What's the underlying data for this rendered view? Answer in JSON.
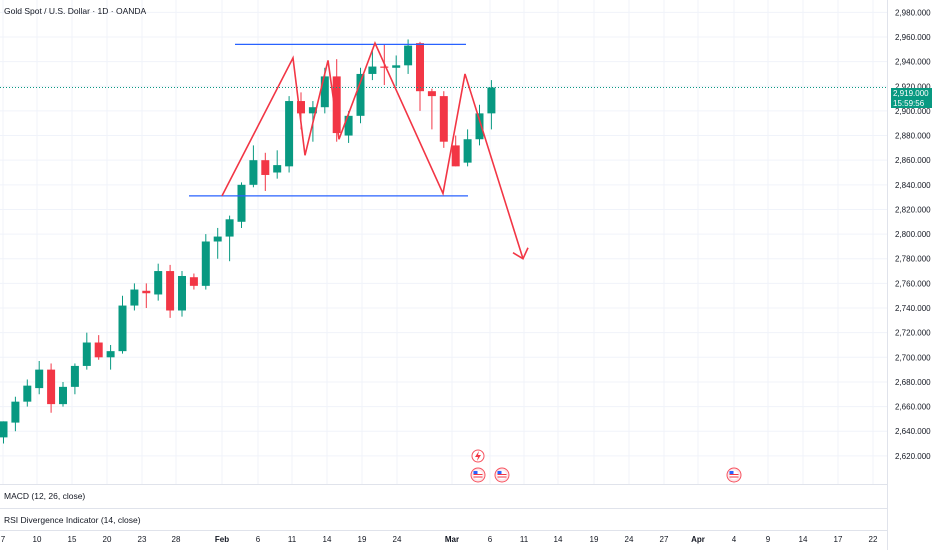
{
  "header": {
    "title": "Gold Spot / U.S. Dollar · 1D · OANDA"
  },
  "current_price": {
    "value": "2,919.000",
    "countdown": "15:59:56"
  },
  "indicators": {
    "macd_label": "MACD (12, 26, close)",
    "rsi_label": "RSI Divergence Indicator (14, close)"
  },
  "colors": {
    "up": "#089981",
    "down": "#f23645",
    "pattern": "#f23645",
    "levels": "#2962ff",
    "grid": "#f0f3fa"
  },
  "chart_data": {
    "type": "candlestick",
    "title": "Gold Spot / U.S. Dollar · 1D · OANDA",
    "ylim": [
      2605,
      2995
    ],
    "y_ticks": [
      2620,
      2640,
      2660,
      2680,
      2700,
      2720,
      2740,
      2760,
      2780,
      2800,
      2820,
      2840,
      2860,
      2880,
      2900,
      2920,
      2940,
      2960,
      2980
    ],
    "x_ticks": [
      "7",
      "10",
      "15",
      "20",
      "23",
      "28",
      "Feb",
      "6",
      "11",
      "14",
      "19",
      "24",
      "Mar",
      "6",
      "11",
      "14",
      "19",
      "24",
      "27",
      "Apr",
      "4",
      "9",
      "14",
      "17",
      "22"
    ],
    "candles": [
      {
        "o": 2635,
        "h": 2648,
        "l": 2630,
        "c": 2648
      },
      {
        "o": 2647,
        "h": 2668,
        "l": 2640,
        "c": 2664
      },
      {
        "o": 2664,
        "h": 2682,
        "l": 2660,
        "c": 2677
      },
      {
        "o": 2675,
        "h": 2697,
        "l": 2670,
        "c": 2690
      },
      {
        "o": 2690,
        "h": 2695,
        "l": 2655,
        "c": 2662
      },
      {
        "o": 2662,
        "h": 2680,
        "l": 2660,
        "c": 2676
      },
      {
        "o": 2676,
        "h": 2695,
        "l": 2670,
        "c": 2693
      },
      {
        "o": 2693,
        "h": 2720,
        "l": 2690,
        "c": 2712
      },
      {
        "o": 2712,
        "h": 2718,
        "l": 2698,
        "c": 2700
      },
      {
        "o": 2700,
        "h": 2710,
        "l": 2690,
        "c": 2705
      },
      {
        "o": 2705,
        "h": 2750,
        "l": 2703,
        "c": 2742
      },
      {
        "o": 2742,
        "h": 2760,
        "l": 2738,
        "c": 2755
      },
      {
        "o": 2754,
        "h": 2760,
        "l": 2740,
        "c": 2752
      },
      {
        "o": 2751,
        "h": 2776,
        "l": 2746,
        "c": 2770
      },
      {
        "o": 2770,
        "h": 2775,
        "l": 2732,
        "c": 2738
      },
      {
        "o": 2738,
        "h": 2770,
        "l": 2733,
        "c": 2766
      },
      {
        "o": 2765,
        "h": 2768,
        "l": 2755,
        "c": 2758
      },
      {
        "o": 2758,
        "h": 2800,
        "l": 2755,
        "c": 2794
      },
      {
        "o": 2794,
        "h": 2805,
        "l": 2780,
        "c": 2798
      },
      {
        "o": 2798,
        "h": 2815,
        "l": 2778,
        "c": 2812
      },
      {
        "o": 2810,
        "h": 2842,
        "l": 2805,
        "c": 2840
      },
      {
        "o": 2840,
        "h": 2872,
        "l": 2838,
        "c": 2860
      },
      {
        "o": 2860,
        "h": 2866,
        "l": 2835,
        "c": 2848
      },
      {
        "o": 2850,
        "h": 2868,
        "l": 2845,
        "c": 2856
      },
      {
        "o": 2855,
        "h": 2912,
        "l": 2850,
        "c": 2908
      },
      {
        "o": 2908,
        "h": 2915,
        "l": 2885,
        "c": 2898
      },
      {
        "o": 2898,
        "h": 2908,
        "l": 2875,
        "c": 2903
      },
      {
        "o": 2903,
        "h": 2935,
        "l": 2898,
        "c": 2928
      },
      {
        "o": 2928,
        "h": 2942,
        "l": 2875,
        "c": 2882
      },
      {
        "o": 2880,
        "h": 2900,
        "l": 2874,
        "c": 2896
      },
      {
        "o": 2896,
        "h": 2935,
        "l": 2890,
        "c": 2930
      },
      {
        "o": 2930,
        "h": 2950,
        "l": 2925,
        "c": 2936
      },
      {
        "o": 2936,
        "h": 2954,
        "l": 2921,
        "c": 2935
      },
      {
        "o": 2935,
        "h": 2945,
        "l": 2920,
        "c": 2937
      },
      {
        "o": 2937,
        "h": 2958,
        "l": 2930,
        "c": 2953
      },
      {
        "o": 2955,
        "h": 2956,
        "l": 2900,
        "c": 2916
      },
      {
        "o": 2916,
        "h": 2918,
        "l": 2885,
        "c": 2912
      },
      {
        "o": 2912,
        "h": 2916,
        "l": 2870,
        "c": 2875
      },
      {
        "o": 2872,
        "h": 2880,
        "l": 2855,
        "c": 2855
      },
      {
        "o": 2858,
        "h": 2885,
        "l": 2855,
        "c": 2877
      },
      {
        "o": 2877,
        "h": 2905,
        "l": 2872,
        "c": 2898
      },
      {
        "o": 2898,
        "h": 2925,
        "l": 2885,
        "c": 2919
      }
    ],
    "annotations": {
      "resistance": 2954,
      "support": 2831,
      "pattern_points": [
        [
          2831,
          0
        ],
        [
          2943,
          1
        ],
        [
          2864,
          2
        ],
        [
          2941,
          3
        ],
        [
          2877,
          4
        ],
        [
          2955,
          5
        ],
        [
          2833,
          6
        ],
        [
          2930,
          7
        ],
        [
          2780,
          8
        ]
      ]
    }
  }
}
